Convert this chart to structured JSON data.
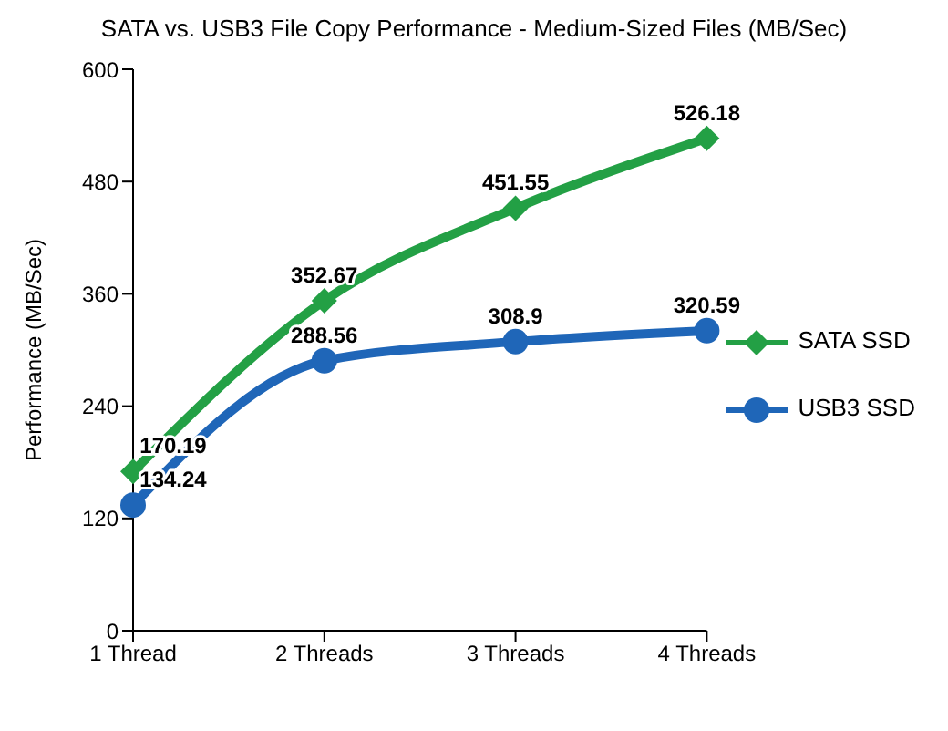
{
  "chart_data": {
    "type": "line",
    "title": "SATA vs. USB3 File Copy Performance - Medium-Sized Files (MB/Sec)",
    "ylabel": "Performance (MB/Sec)",
    "categories": [
      "1 Thread",
      "2 Threads",
      "3 Threads",
      "4 Threads"
    ],
    "series": [
      {
        "name": "SATA SSD",
        "color": "#23a045",
        "values": [
          170.19,
          352.67,
          451.55,
          526.18
        ],
        "marker": "diamond"
      },
      {
        "name": "USB3 SSD",
        "color": "#1f66b8",
        "values": [
          134.24,
          288.56,
          308.9,
          320.59
        ],
        "marker": "circle"
      }
    ],
    "ylim": [
      0,
      600
    ],
    "yticks": [
      0,
      120,
      240,
      360,
      480,
      600
    ],
    "grid": false,
    "legend": "right",
    "data_labels": true
  }
}
